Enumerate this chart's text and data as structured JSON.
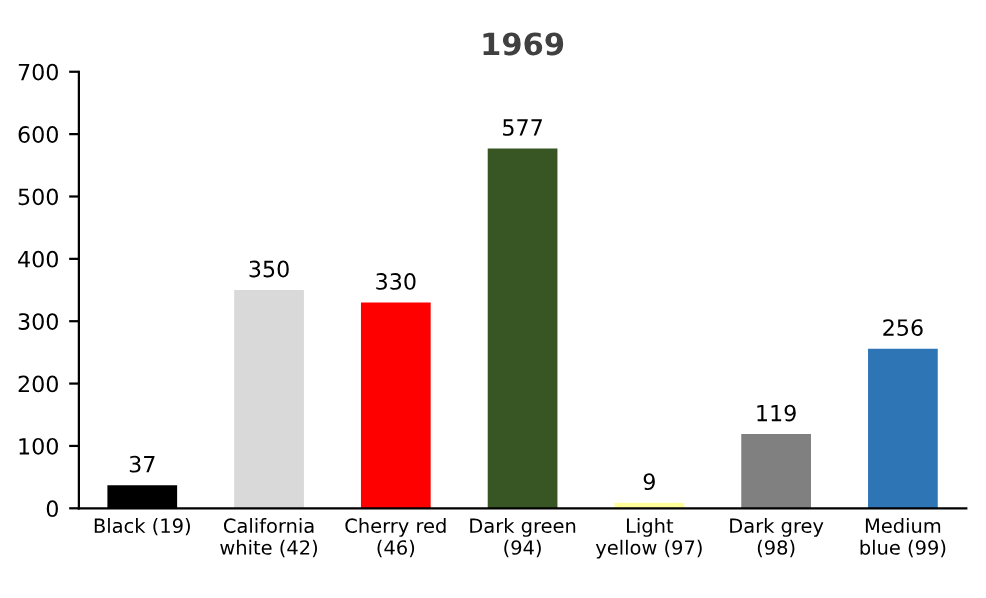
{
  "chart_data": {
    "type": "bar",
    "title": "1969",
    "categories": [
      "Black (19)",
      "California\nwhite (42)",
      "Cherry red\n(46)",
      "Dark green\n(94)",
      "Light\nyellow (97)",
      "Dark grey\n(98)",
      "Medium\nblue (99)"
    ],
    "values": [
      37,
      350,
      330,
      577,
      9,
      119,
      256
    ],
    "colors": [
      "#000000",
      "#d9d9d9",
      "#ff0000",
      "#375623",
      "#ffff99",
      "#808080",
      "#2e75b6"
    ],
    "ylim": [
      0,
      700
    ],
    "yticks": [
      0,
      100,
      200,
      300,
      400,
      500,
      600,
      700
    ],
    "data_labels": true,
    "grid": false
  }
}
